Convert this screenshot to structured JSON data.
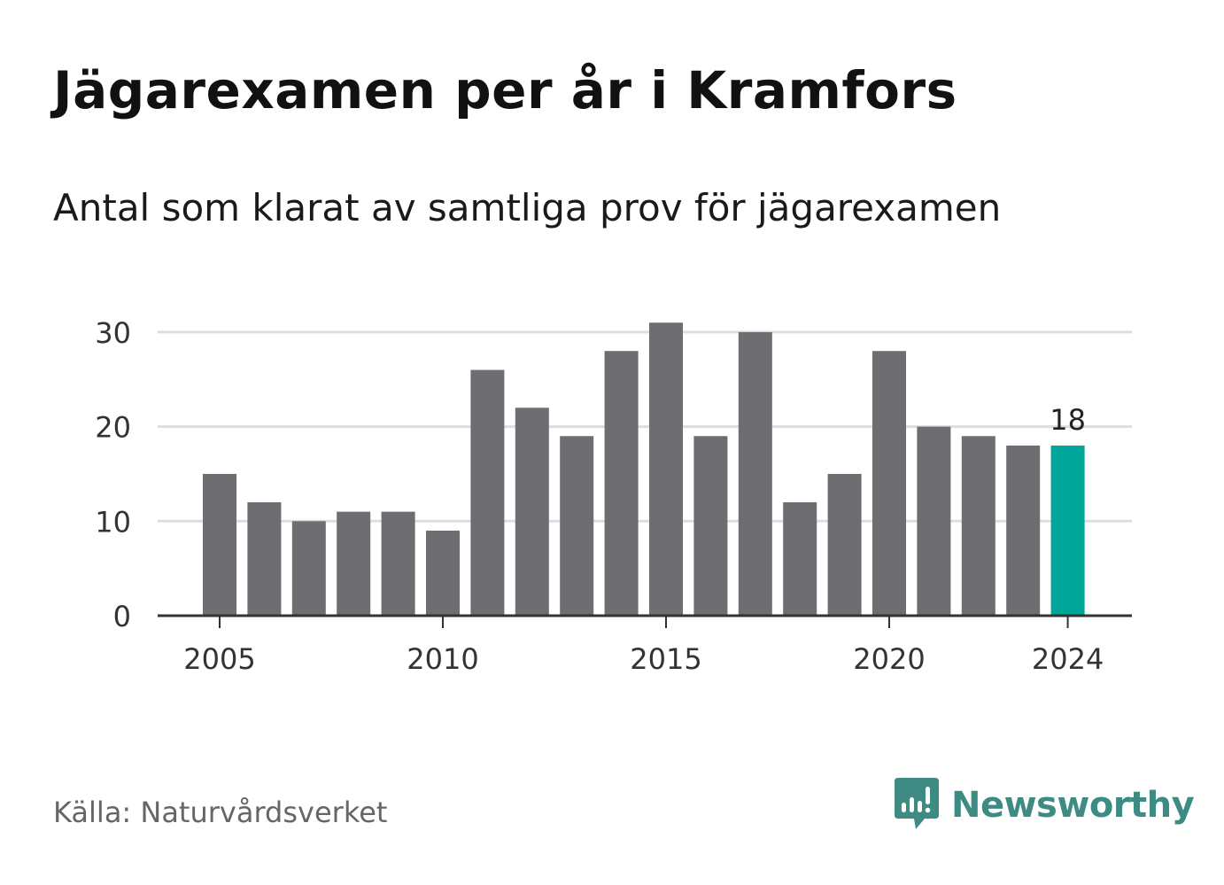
{
  "title": "Jägarexamen per år i Kramfors",
  "subtitle": "Antal som klarat av samtliga prov för jägarexamen",
  "source": "Källa: Naturvårdsverket",
  "brand": {
    "name": "Newsworthy",
    "icon": "newsworthy-logo-icon",
    "color": "#3d8b83"
  },
  "chart_data": {
    "type": "bar",
    "title": "Jägarexamen per år i Kramfors",
    "subtitle": "Antal som klarat av samtliga prov för jägarexamen",
    "categories": [
      2005,
      2006,
      2007,
      2008,
      2009,
      2010,
      2011,
      2012,
      2013,
      2014,
      2015,
      2016,
      2017,
      2018,
      2019,
      2020,
      2021,
      2022,
      2023,
      2024
    ],
    "values": [
      15,
      12,
      10,
      11,
      11,
      9,
      26,
      22,
      19,
      28,
      31,
      19,
      30,
      12,
      15,
      28,
      20,
      19,
      18,
      18
    ],
    "ylim": [
      0,
      32
    ],
    "yticks": [
      0,
      10,
      20,
      30
    ],
    "xticks": [
      2005,
      2010,
      2015,
      2020,
      2024
    ],
    "grid": true,
    "bar_color": "#6e6d72",
    "highlight_color": "#00a69a",
    "highlight_index": 19,
    "annotation": {
      "index": 19,
      "text": "18"
    }
  }
}
